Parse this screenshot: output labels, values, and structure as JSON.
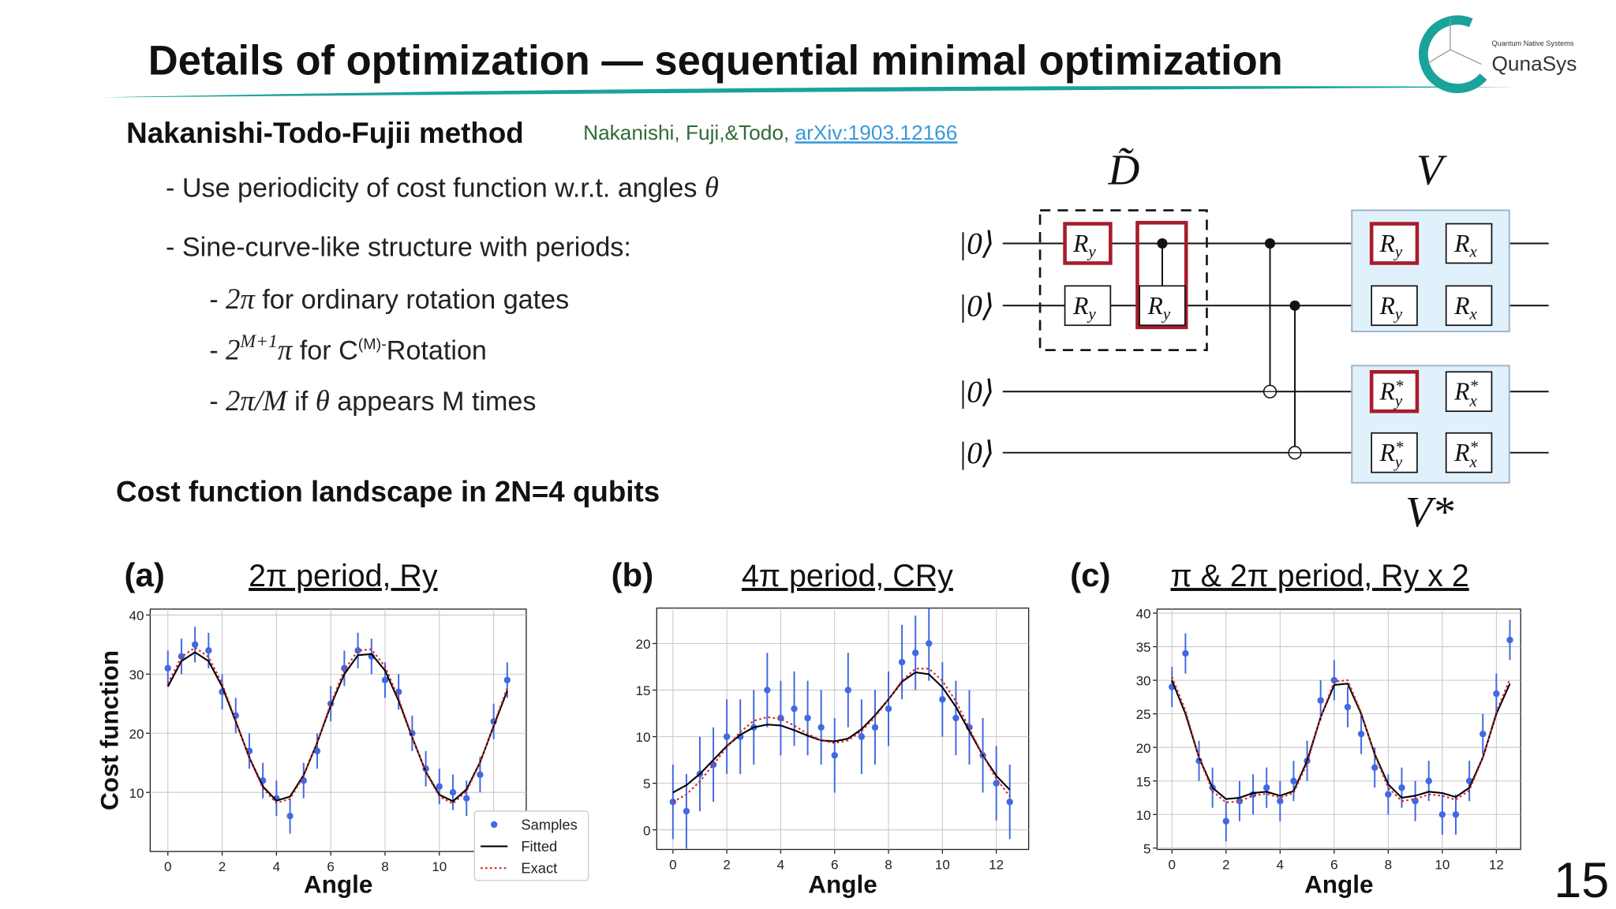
{
  "header": {
    "title": "Details of optimization — sequential minimal optimization",
    "logo_tagline": "Quantum Native Systems",
    "logo_name": "QunaSys"
  },
  "method": {
    "heading": "Nakanishi-Todo-Fujii method",
    "citation": "Nakanishi, Fuji,&Todo, ",
    "link": "arXiv:1903.12166"
  },
  "bullets": [
    [
      {
        "text": "- Use periodicity of cost function w.r.t. angles "
      },
      {
        "text": "θ",
        "style": "math"
      }
    ],
    [
      {
        "text": "- Sine-curve-like structure with periods:"
      }
    ]
  ],
  "sub_bullets": [
    [
      {
        "text": "- "
      },
      {
        "text": "2π",
        "style": "math"
      },
      {
        "text": " for ordinary rotation gates"
      }
    ],
    [
      {
        "text": "- "
      },
      {
        "text": "2",
        "style": "math"
      },
      {
        "text": "M+1",
        "style": "sup"
      },
      {
        "text": "π",
        "style": "math"
      },
      {
        "text": " for C"
      },
      {
        "text": "(M)-",
        "style": "sup-text"
      },
      {
        "text": "Rotation"
      }
    ],
    [
      {
        "text": "- "
      },
      {
        "text": "2π/M",
        "style": "math"
      },
      {
        "text": " if "
      },
      {
        "text": "θ",
        "style": "math"
      },
      {
        "text": " appears M times"
      }
    ]
  ],
  "landscape_heading": "Cost function landscape in 2N=4 qubits",
  "circuit": {
    "inputs": [
      "|0⟩",
      "|0⟩",
      "|0⟩",
      "|0⟩"
    ],
    "block_labels": [
      "D̃",
      "V",
      "V*"
    ],
    "gates": [
      {
        "base": "R",
        "sub": "y"
      },
      {
        "base": "R",
        "sub": "y"
      },
      {
        "base": "R",
        "sub": "y"
      },
      {
        "base": "R",
        "sub": "y"
      },
      {
        "base": "R",
        "sub": "x"
      },
      {
        "base": "R",
        "sub": "y"
      },
      {
        "base": "R",
        "sub": "x"
      },
      {
        "base": "R",
        "sub": "y",
        "sup": "*"
      },
      {
        "base": "R",
        "sub": "x",
        "sup": "*"
      },
      {
        "base": "R",
        "sub": "y",
        "sup": "*"
      },
      {
        "base": "R",
        "sub": "x",
        "sup": "*"
      }
    ]
  },
  "page_number": "15",
  "chart_data": [
    {
      "type": "scatter",
      "label": "(a)",
      "title": "2π period, Ry",
      "xlabel": "Angle",
      "ylabel": "Cost function",
      "xlim": [
        -0.65,
        13.2
      ],
      "ylim": [
        0,
        41
      ],
      "xticks": [
        0,
        2,
        4,
        6,
        8,
        10,
        12
      ],
      "yticks": [
        10,
        20,
        30,
        40
      ],
      "grid": true,
      "legend": "lower right",
      "x": [
        0,
        0.5,
        1,
        1.5,
        2,
        2.5,
        3,
        3.5,
        4,
        4.5,
        5,
        5.5,
        6,
        6.5,
        7,
        7.5,
        8,
        8.5,
        9,
        9.5,
        10,
        10.5,
        11,
        11.5,
        12,
        12.5
      ],
      "series": [
        {
          "name": "Samples",
          "style": "points",
          "color": "#4169e1",
          "error": 3,
          "values": [
            31,
            33,
            35,
            34,
            27,
            23,
            17,
            12,
            9,
            6,
            12,
            17,
            25,
            31,
            34,
            33,
            29,
            27,
            20,
            14,
            11,
            10,
            9,
            13,
            22,
            29
          ]
        },
        {
          "name": "Fitted",
          "style": "line",
          "color": "#000000",
          "values": [
            27.9,
            32.2,
            33.7,
            32.2,
            27.9,
            22.0,
            15.9,
            11.0,
            8.6,
            9.3,
            12.9,
            18.4,
            24.7,
            30.0,
            33.2,
            33.4,
            30.6,
            25.5,
            19.3,
            13.5,
            9.6,
            8.5,
            10.5,
            15.1,
            21.2,
            27.2
          ]
        },
        {
          "name": "Exact",
          "style": "dotted",
          "color": "#d62728",
          "values": [
            28.4,
            32.9,
            34.5,
            32.9,
            28.4,
            22.2,
            15.8,
            10.7,
            8.2,
            8.9,
            12.7,
            18.5,
            25.0,
            30.7,
            34.0,
            34.2,
            31.3,
            25.9,
            19.4,
            13.4,
            9.3,
            8.1,
            10.2,
            15.0,
            21.4,
            27.7
          ]
        }
      ]
    },
    {
      "type": "scatter",
      "label": "(b)",
      "title": "4π period, CRy",
      "xlabel": "Angle",
      "xlim": [
        -0.6,
        13.2
      ],
      "ylim": [
        -2.1,
        23.8
      ],
      "xticks": [
        0,
        2,
        4,
        6,
        8,
        10,
        12
      ],
      "yticks": [
        0,
        5,
        10,
        15,
        20
      ],
      "grid": true,
      "x": [
        0,
        0.5,
        1,
        1.5,
        2,
        2.5,
        3,
        3.5,
        4,
        4.5,
        5,
        5.5,
        6,
        6.5,
        7,
        7.5,
        8,
        8.5,
        9,
        9.5,
        10,
        10.5,
        11,
        11.5,
        12,
        12.5
      ],
      "series": [
        {
          "style": "points",
          "color": "#4169e1",
          "error": 4,
          "values": [
            3,
            2,
            6,
            7,
            10,
            10,
            11,
            15,
            12,
            13,
            12,
            11,
            8,
            15,
            10,
            11,
            13,
            18,
            19,
            20,
            14,
            12,
            11,
            8,
            5,
            3
          ]
        },
        {
          "style": "line",
          "color": "#000000",
          "values": [
            4.0,
            4.8,
            6.0,
            7.5,
            9.0,
            10.2,
            11.0,
            11.3,
            11.2,
            10.7,
            10.1,
            9.6,
            9.5,
            9.8,
            10.8,
            12.3,
            14.0,
            15.9,
            16.9,
            16.7,
            15.3,
            13.2,
            10.6,
            8.0,
            5.8,
            4.3
          ]
        },
        {
          "style": "dotted",
          "color": "#d62728",
          "values": [
            3.0,
            3.8,
            5.2,
            7.0,
            8.9,
            10.5,
            11.7,
            12.1,
            11.9,
            11.2,
            10.3,
            9.6,
            9.3,
            9.6,
            10.6,
            12.1,
            14.0,
            16.0,
            17.3,
            17.3,
            16.0,
            13.8,
            10.9,
            8.0,
            5.5,
            3.6
          ]
        }
      ]
    },
    {
      "type": "scatter",
      "label": "(c)",
      "title": "π & 2π period, Ry x 2",
      "xlabel": "Angle",
      "xlim": [
        -0.55,
        12.9
      ],
      "ylim": [
        4.8,
        40.6
      ],
      "xticks": [
        0,
        2,
        4,
        6,
        8,
        10,
        12
      ],
      "yticks": [
        5,
        10,
        15,
        20,
        25,
        30,
        35,
        40
      ],
      "grid": true,
      "x": [
        0,
        0.5,
        1,
        1.5,
        2,
        2.5,
        3,
        3.5,
        4,
        4.5,
        5,
        5.5,
        6,
        6.5,
        7,
        7.5,
        8,
        8.5,
        9,
        9.5,
        10,
        10.5,
        11,
        11.5,
        12,
        12.5
      ],
      "series": [
        {
          "style": "points",
          "color": "#4169e1",
          "error": 3,
          "values": [
            29,
            34,
            18,
            14,
            9,
            12,
            13,
            14,
            12,
            15,
            18,
            27,
            30,
            26,
            22,
            17,
            13,
            14,
            12,
            15,
            10,
            10,
            15,
            22,
            28,
            36
          ]
        },
        {
          "style": "line",
          "color": "#000000",
          "values": [
            30,
            25,
            18.5,
            14,
            12.3,
            12.5,
            13.2,
            13.4,
            12.8,
            13.5,
            18,
            24.5,
            29.3,
            29.5,
            25,
            19,
            14.5,
            12.5,
            12.8,
            13.4,
            13.2,
            12.6,
            14,
            18.5,
            25,
            29.5
          ]
        },
        {
          "style": "dotted",
          "color": "#d62728",
          "values": [
            30.5,
            25.5,
            18.5,
            13.5,
            11.8,
            12,
            12.8,
            13.1,
            12.5,
            13.2,
            17.6,
            24.5,
            29.8,
            30,
            25.2,
            18.8,
            14,
            12,
            12.3,
            13,
            12.8,
            12.2,
            13.6,
            18.4,
            25.3,
            30.2
          ]
        }
      ]
    }
  ]
}
